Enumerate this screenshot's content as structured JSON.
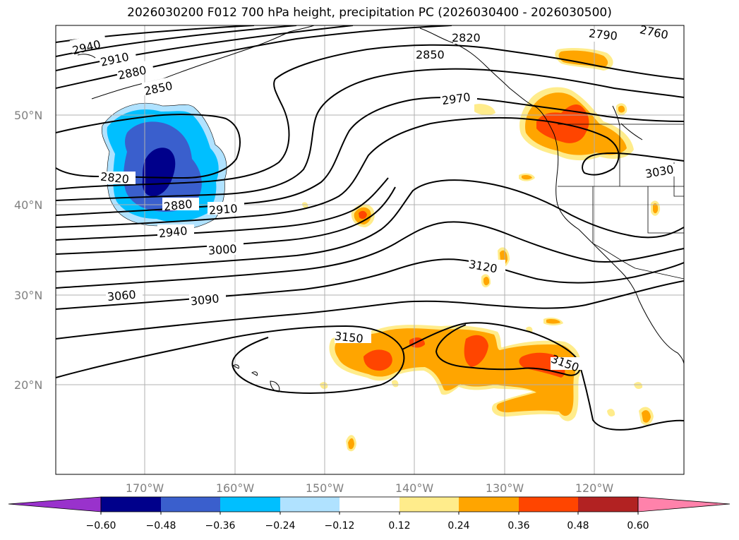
{
  "title": "2026030200 F012 700 hPa height, precipitation PC (2026030400 - 2026030500)",
  "lat_labels": [
    "50°N",
    "40°N",
    "30°N",
    "20°N"
  ],
  "lon_labels": [
    "170°W",
    "160°W",
    "150°W",
    "140°W",
    "130°W",
    "120°W"
  ],
  "height_contour_labels": [
    "2940",
    "2910",
    "2880",
    "2850",
    "2820",
    "2880",
    "2910",
    "2940",
    "3000",
    "3060",
    "3090",
    "2820",
    "2850",
    "2970",
    "2790",
    "2760",
    "3030",
    "3120",
    "3150",
    "3150"
  ],
  "colorbar": {
    "ticks": [
      "−0.60",
      "−0.48",
      "−0.36",
      "−0.24",
      "−0.12",
      "0.12",
      "0.24",
      "0.36",
      "0.48",
      "0.60"
    ],
    "colors": [
      "#9932cc",
      "#00008b",
      "#3a5fcd",
      "#00bfff",
      "#b0e2ff",
      "#ffffff",
      "#ffec8b",
      "#ffa500",
      "#ff4500",
      "#b22222",
      "#ff82ab"
    ]
  },
  "colors": {
    "contour": "#000000",
    "coastline": "#000000",
    "grid": "#b0b0b0",
    "tick_label": "#808080"
  }
}
